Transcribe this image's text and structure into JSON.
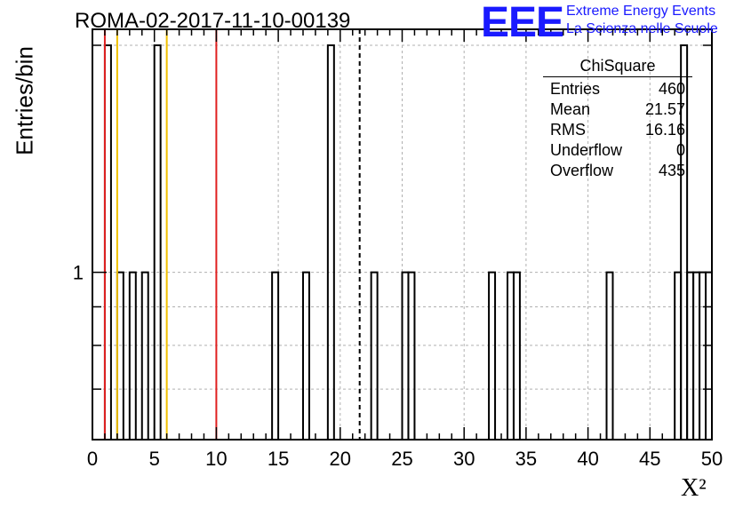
{
  "page_title": "ROMA-02-2017-11-10-00139",
  "logo": {
    "mark": "EEE",
    "line1": "Extreme Energy Events",
    "line2": "La Scienza nelle Scuole",
    "color": "#1a1aff"
  },
  "stats_box": {
    "title": "ChiSquare",
    "rows": [
      {
        "label": "Entries",
        "value": "460"
      },
      {
        "label": "Mean",
        "value": "21.57"
      },
      {
        "label": "RMS",
        "value": "16.16"
      },
      {
        "label": "Underflow",
        "value": "0"
      },
      {
        "label": "Overflow",
        "value": "435"
      }
    ]
  },
  "chart_data": {
    "type": "bar",
    "histogram": true,
    "xlabel": "X²",
    "ylabel": "Entries/bin",
    "xlim": [
      0,
      50
    ],
    "bin_width": 0.5,
    "y_scale": "log",
    "ylim": [
      0.6,
      2.1
    ],
    "x_ticks": [
      0,
      5,
      10,
      15,
      20,
      25,
      30,
      35,
      40,
      45,
      50
    ],
    "y_tick_labels": [
      {
        "value": 1,
        "label": "1"
      }
    ],
    "grid": true,
    "bins": [
      {
        "x": 1.0,
        "count": 2
      },
      {
        "x": 2.0,
        "count": 1
      },
      {
        "x": 3.0,
        "count": 1
      },
      {
        "x": 4.0,
        "count": 1
      },
      {
        "x": 5.0,
        "count": 2
      },
      {
        "x": 14.5,
        "count": 1
      },
      {
        "x": 17.0,
        "count": 1
      },
      {
        "x": 19.0,
        "count": 2
      },
      {
        "x": 22.5,
        "count": 1
      },
      {
        "x": 25.0,
        "count": 1
      },
      {
        "x": 25.5,
        "count": 1
      },
      {
        "x": 32.0,
        "count": 1
      },
      {
        "x": 33.5,
        "count": 1
      },
      {
        "x": 34.0,
        "count": 1
      },
      {
        "x": 41.5,
        "count": 1
      },
      {
        "x": 47.0,
        "count": 1
      },
      {
        "x": 47.5,
        "count": 2
      },
      {
        "x": 48.0,
        "count": 1
      },
      {
        "x": 48.5,
        "count": 1
      },
      {
        "x": 49.0,
        "count": 1
      },
      {
        "x": 49.5,
        "count": 1
      }
    ],
    "reference_lines": [
      {
        "x": 1.0,
        "color": "#e02020",
        "style": "solid"
      },
      {
        "x": 2.0,
        "color": "#f0c000",
        "style": "solid"
      },
      {
        "x": 6.0,
        "color": "#f0c000",
        "style": "solid"
      },
      {
        "x": 10.0,
        "color": "#e02020",
        "style": "solid"
      },
      {
        "x": 21.57,
        "color": "#000000",
        "style": "dashed"
      }
    ]
  }
}
